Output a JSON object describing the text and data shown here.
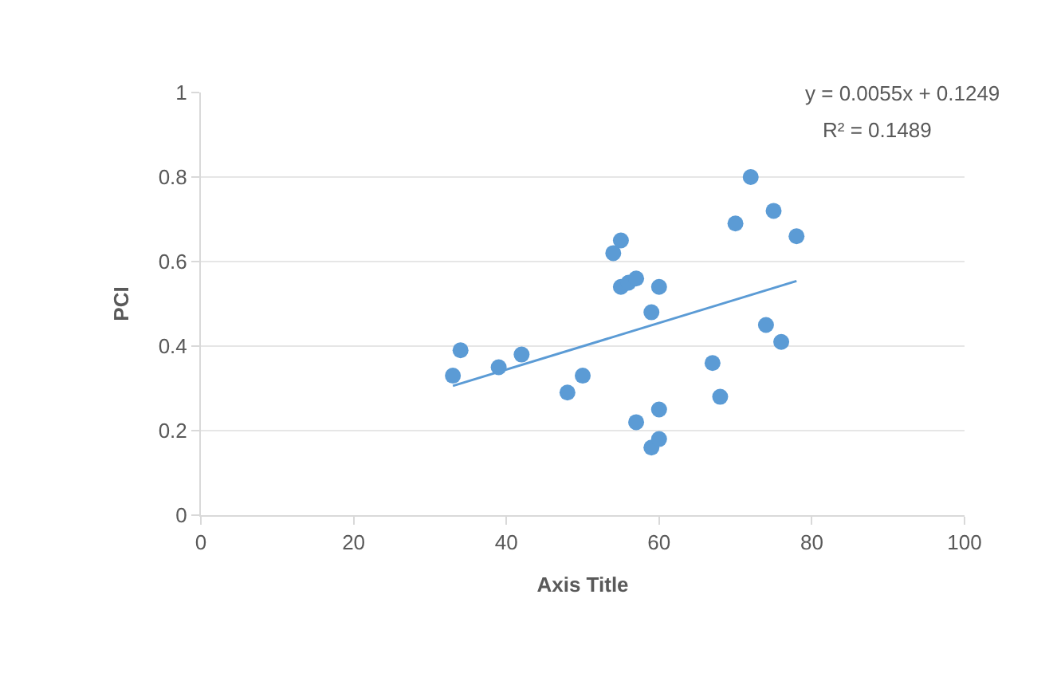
{
  "chart_data": {
    "type": "scatter",
    "xlabel": "Axis Title",
    "ylabel": "PCI",
    "xlim": [
      0,
      100
    ],
    "xticks": [
      0,
      20,
      40,
      60,
      80,
      100
    ],
    "ylim": [
      0,
      1
    ],
    "yticks": [
      0,
      0.2,
      0.4,
      0.6,
      0.8,
      1
    ],
    "grid": "y",
    "marker": "circle",
    "annotations": [
      "y = 0.0055x + 0.1249",
      "R² = 0.1489"
    ],
    "series": [
      {
        "color": "#5b9bd5",
        "x": [
          33,
          34,
          39,
          42,
          48,
          50,
          54,
          55,
          55,
          56,
          57,
          57,
          59,
          59,
          60,
          60,
          60,
          67,
          68,
          70,
          72,
          74,
          75,
          76,
          78
        ],
        "values": [
          0.33,
          0.39,
          0.35,
          0.38,
          0.29,
          0.33,
          0.62,
          0.65,
          0.54,
          0.55,
          0.56,
          0.22,
          0.48,
          0.16,
          0.18,
          0.54,
          0.25,
          0.36,
          0.28,
          0.69,
          0.8,
          0.45,
          0.72,
          0.41,
          0.66
        ]
      },
      {
        "type": "line",
        "marker": "none",
        "color": "#5b9bd5",
        "x": [
          33,
          78
        ],
        "values": [
          0.306,
          0.554
        ]
      }
    ]
  }
}
